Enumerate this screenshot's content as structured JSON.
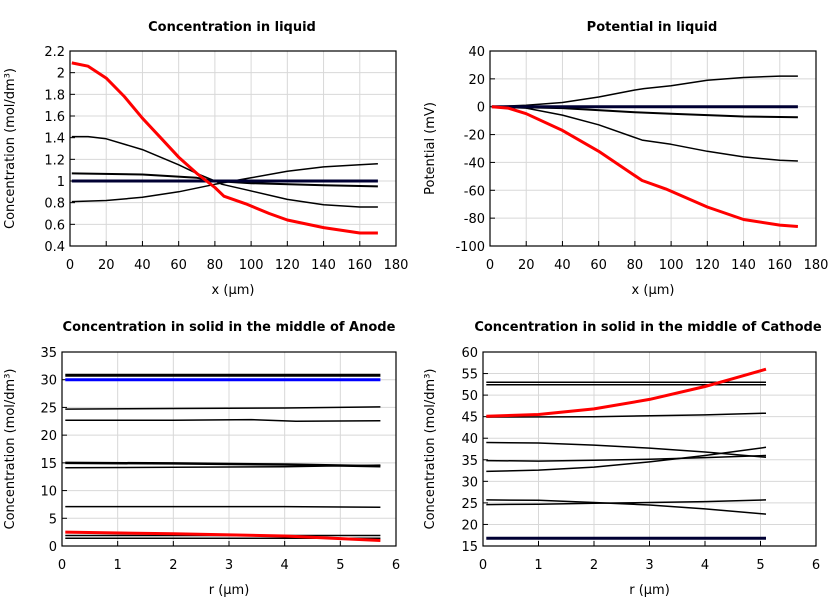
{
  "chart_data": [
    {
      "type": "line",
      "title": "Concentration in liquid",
      "xlabel": "x (µm)",
      "ylabel": "Concentration (mol/dm³)",
      "xlim": [
        0,
        180
      ],
      "ylim": [
        0.4,
        2.2
      ],
      "xticks": [
        0,
        20,
        40,
        60,
        80,
        100,
        120,
        140,
        160,
        180
      ],
      "yticks": [
        0.4,
        0.6,
        0.8,
        1,
        1.2,
        1.4,
        1.6,
        1.8,
        2,
        2.2
      ],
      "grid": true,
      "series": [
        {
          "color": "#000000",
          "width": 1.5,
          "x": [
            1,
            10,
            20,
            40,
            60,
            70,
            80,
            84,
            97,
            120,
            140,
            160,
            170
          ],
          "y": [
            1.41,
            1.41,
            1.39,
            1.29,
            1.15,
            1.07,
            1.0,
            0.97,
            0.92,
            0.83,
            0.78,
            0.76,
            0.76
          ]
        },
        {
          "color": "#000000",
          "width": 2,
          "x": [
            1,
            40,
            70,
            80,
            100,
            140,
            170
          ],
          "y": [
            1.07,
            1.06,
            1.03,
            1.0,
            0.98,
            0.96,
            0.95
          ]
        },
        {
          "color": "#000000",
          "width": 1.5,
          "x": [
            1,
            20,
            40,
            60,
            80,
            100,
            120,
            140,
            160,
            170
          ],
          "y": [
            0.81,
            0.82,
            0.85,
            0.9,
            0.97,
            1.03,
            1.09,
            1.13,
            1.15,
            1.16
          ]
        },
        {
          "color": "#000033",
          "width": 3,
          "x": [
            1,
            170
          ],
          "y": [
            1.0,
            1.0
          ]
        },
        {
          "color": "#ff0000",
          "width": 3,
          "x": [
            1,
            10,
            20,
            30,
            40,
            50,
            60,
            70,
            80,
            85,
            97,
            110,
            120,
            140,
            160,
            170
          ],
          "y": [
            2.09,
            2.06,
            1.95,
            1.78,
            1.58,
            1.4,
            1.22,
            1.07,
            0.94,
            0.86,
            0.79,
            0.7,
            0.64,
            0.57,
            0.52,
            0.52
          ]
        }
      ]
    },
    {
      "type": "line",
      "title": "Potential in liquid",
      "xlabel": "x (µm)",
      "ylabel": "Potential (mV)",
      "xlim": [
        0,
        180
      ],
      "ylim": [
        -100,
        40
      ],
      "xticks": [
        0,
        20,
        40,
        60,
        80,
        100,
        120,
        140,
        160,
        180
      ],
      "yticks": [
        -100,
        -80,
        -60,
        -40,
        -20,
        0,
        20,
        40
      ],
      "grid": true,
      "series": [
        {
          "color": "#000000",
          "width": 1.5,
          "x": [
            1,
            20,
            40,
            60,
            80,
            85,
            100,
            120,
            140,
            160,
            170
          ],
          "y": [
            0,
            1,
            3,
            7,
            12,
            13,
            15,
            19,
            21,
            22,
            22
          ]
        },
        {
          "color": "#000000",
          "width": 2,
          "x": [
            1,
            40,
            80,
            100,
            140,
            170
          ],
          "y": [
            0,
            -1,
            -4,
            -5,
            -7,
            -7.5
          ]
        },
        {
          "color": "#000000",
          "width": 1.5,
          "x": [
            1,
            20,
            40,
            60,
            84,
            100,
            120,
            140,
            160,
            170
          ],
          "y": [
            0,
            -1,
            -6,
            -13,
            -24,
            -27,
            -32,
            -36,
            -38.5,
            -39
          ]
        },
        {
          "color": "#000033",
          "width": 3,
          "x": [
            1,
            170
          ],
          "y": [
            0,
            0
          ]
        },
        {
          "color": "#ff0000",
          "width": 3,
          "x": [
            1,
            10,
            20,
            40,
            60,
            84,
            97,
            120,
            140,
            160,
            170
          ],
          "y": [
            0,
            -1,
            -5,
            -17,
            -32,
            -53,
            -59,
            -72,
            -81,
            -85,
            -86
          ]
        }
      ]
    },
    {
      "type": "line",
      "title": "Concentration in solid in the middle of Anode",
      "xlabel": "r (µm)",
      "ylabel": "Concentration (mol/dm³)",
      "xlim": [
        0,
        6
      ],
      "ylim": [
        0,
        35
      ],
      "xticks": [
        0,
        1,
        2,
        3,
        4,
        5,
        6
      ],
      "yticks": [
        0,
        5,
        10,
        15,
        20,
        25,
        30,
        35
      ],
      "grid": true,
      "series": [
        {
          "color": "#000000",
          "width": 3,
          "x": [
            0.06,
            5.72
          ],
          "y": [
            30.8,
            30.8
          ]
        },
        {
          "color": "#0000ff",
          "width": 3,
          "x": [
            0.06,
            5.72
          ],
          "y": [
            30,
            30
          ]
        },
        {
          "color": "#000000",
          "width": 1.5,
          "x": [
            0.06,
            2,
            4,
            5.72
          ],
          "y": [
            24.7,
            24.8,
            24.9,
            25.1
          ]
        },
        {
          "color": "#000000",
          "width": 1.5,
          "x": [
            0.06,
            2,
            3.4,
            4.2,
            5.72
          ],
          "y": [
            22.7,
            22.7,
            22.8,
            22.5,
            22.6
          ]
        },
        {
          "color": "#000000",
          "width": 2.5,
          "x": [
            0.06,
            2,
            4,
            5.72
          ],
          "y": [
            15,
            14.9,
            14.7,
            14.4
          ]
        },
        {
          "color": "#000000",
          "width": 1.5,
          "x": [
            0.06,
            2,
            4,
            5.72
          ],
          "y": [
            14.1,
            14.2,
            14.3,
            14.6
          ]
        },
        {
          "color": "#000000",
          "width": 1.5,
          "x": [
            0.06,
            3,
            4,
            5.72
          ],
          "y": [
            7.1,
            7.1,
            7.1,
            7.0
          ]
        },
        {
          "color": "#000000",
          "width": 1.5,
          "x": [
            0.06,
            5.72
          ],
          "y": [
            1.9,
            1.9
          ]
        },
        {
          "color": "#000000",
          "width": 1.5,
          "x": [
            0.06,
            5.72
          ],
          "y": [
            1.4,
            1.4
          ]
        },
        {
          "color": "#ff0000",
          "width": 3,
          "x": [
            0.06,
            2,
            4,
            5.72
          ],
          "y": [
            2.5,
            2.2,
            1.8,
            1.0
          ]
        }
      ]
    },
    {
      "type": "line",
      "title": "Concentration in solid in the middle of Cathode",
      "xlabel": "r (µm)",
      "ylabel": "Concentration (mol/dm³)",
      "xlim": [
        0,
        6
      ],
      "ylim": [
        15,
        60
      ],
      "xticks": [
        0,
        1,
        2,
        3,
        4,
        5,
        6
      ],
      "yticks": [
        15,
        20,
        25,
        30,
        35,
        40,
        45,
        50,
        55,
        60
      ],
      "grid": true,
      "series": [
        {
          "color": "#000000",
          "width": 1.5,
          "x": [
            0.06,
            5.1
          ],
          "y": [
            53,
            53
          ]
        },
        {
          "color": "#000000",
          "width": 1.5,
          "x": [
            0.06,
            5.1
          ],
          "y": [
            52.4,
            52.4
          ]
        },
        {
          "color": "#000000",
          "width": 1.5,
          "x": [
            0.06,
            2,
            4,
            5.1
          ],
          "y": [
            44.9,
            45,
            45.4,
            45.8
          ]
        },
        {
          "color": "#000000",
          "width": 1.5,
          "x": [
            0.06,
            1,
            2,
            3,
            4,
            5.1
          ],
          "y": [
            39,
            38.9,
            38.4,
            37.7,
            36.8,
            35.6
          ]
        },
        {
          "color": "#000000",
          "width": 1.5,
          "x": [
            0.06,
            1,
            2,
            3,
            4,
            5.1
          ],
          "y": [
            34.8,
            34.7,
            34.9,
            35.1,
            35.5,
            36
          ]
        },
        {
          "color": "#000000",
          "width": 1.5,
          "x": [
            0.06,
            1,
            2,
            3,
            4,
            5.1
          ],
          "y": [
            32.3,
            32.6,
            33.3,
            34.5,
            36,
            37.9
          ]
        },
        {
          "color": "#000000",
          "width": 1.5,
          "x": [
            0.06,
            1,
            2,
            3,
            4,
            5.1
          ],
          "y": [
            25.7,
            25.6,
            25.1,
            24.5,
            23.6,
            22.4
          ]
        },
        {
          "color": "#000000",
          "width": 1.5,
          "x": [
            0.06,
            1,
            2,
            3,
            4,
            5.1
          ],
          "y": [
            24.6,
            24.7,
            24.9,
            25.1,
            25.3,
            25.7
          ]
        },
        {
          "color": "#000033",
          "width": 3,
          "x": [
            0.06,
            5.1
          ],
          "y": [
            16.8,
            16.8
          ]
        },
        {
          "color": "#ff0000",
          "width": 3,
          "x": [
            0.06,
            1,
            2,
            3,
            4,
            4.5,
            5.1
          ],
          "y": [
            45.1,
            45.5,
            46.8,
            49,
            52,
            53.8,
            56
          ]
        }
      ]
    }
  ]
}
